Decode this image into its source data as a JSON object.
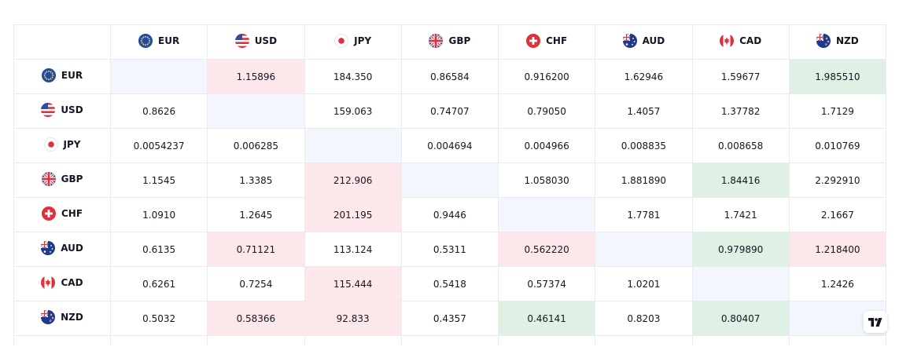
{
  "currencies": [
    "EUR",
    "USD",
    "JPY",
    "GBP",
    "CHF",
    "AUD",
    "CAD",
    "NZD"
  ],
  "flag_icons": {
    "EUR": "eu-flag-icon",
    "USD": "us-flag-icon",
    "JPY": "japan-flag-icon",
    "GBP": "uk-flag-icon",
    "CHF": "swiss-flag-icon",
    "AUD": "australia-flag-icon",
    "CAD": "canada-flag-icon",
    "NZD": "new-zealand-flag-icon"
  },
  "colors": {
    "diagonal": "#f3f6fd",
    "positive": "#dff0e4",
    "negative": "#fce8ea",
    "border": "#e9ebef",
    "text": "#131722"
  },
  "rows": [
    {
      "base": "EUR",
      "cells": [
        {
          "v": "",
          "s": "diag"
        },
        {
          "v": "1.15896",
          "s": "neg"
        },
        {
          "v": "184.350",
          "s": "neutral"
        },
        {
          "v": "0.86584",
          "s": "neutral"
        },
        {
          "v": "0.916200",
          "s": "neutral"
        },
        {
          "v": "1.62946",
          "s": "neutral"
        },
        {
          "v": "1.59677",
          "s": "neutral"
        },
        {
          "v": "1.985510",
          "s": "pos"
        }
      ]
    },
    {
      "base": "USD",
      "cells": [
        {
          "v": "0.8626",
          "s": "neutral"
        },
        {
          "v": "",
          "s": "diag"
        },
        {
          "v": "159.063",
          "s": "neutral"
        },
        {
          "v": "0.74707",
          "s": "neutral"
        },
        {
          "v": "0.79050",
          "s": "neutral"
        },
        {
          "v": "1.4057",
          "s": "neutral"
        },
        {
          "v": "1.37782",
          "s": "neutral"
        },
        {
          "v": "1.7129",
          "s": "neutral"
        }
      ]
    },
    {
      "base": "JPY",
      "cells": [
        {
          "v": "0.0054237",
          "s": "neutral"
        },
        {
          "v": "0.006285",
          "s": "neutral"
        },
        {
          "v": "",
          "s": "diag"
        },
        {
          "v": "0.004694",
          "s": "neutral"
        },
        {
          "v": "0.004966",
          "s": "neutral"
        },
        {
          "v": "0.008835",
          "s": "neutral"
        },
        {
          "v": "0.008658",
          "s": "neutral"
        },
        {
          "v": "0.010769",
          "s": "neutral"
        }
      ]
    },
    {
      "base": "GBP",
      "cells": [
        {
          "v": "1.1545",
          "s": "neutral"
        },
        {
          "v": "1.3385",
          "s": "neutral"
        },
        {
          "v": "212.906",
          "s": "neg"
        },
        {
          "v": "",
          "s": "diag"
        },
        {
          "v": "1.058030",
          "s": "neutral"
        },
        {
          "v": "1.881890",
          "s": "neutral"
        },
        {
          "v": "1.84416",
          "s": "pos"
        },
        {
          "v": "2.292910",
          "s": "neutral"
        }
      ]
    },
    {
      "base": "CHF",
      "cells": [
        {
          "v": "1.0910",
          "s": "neutral"
        },
        {
          "v": "1.2645",
          "s": "neutral"
        },
        {
          "v": "201.195",
          "s": "neg"
        },
        {
          "v": "0.9446",
          "s": "neutral"
        },
        {
          "v": "",
          "s": "diag"
        },
        {
          "v": "1.7781",
          "s": "neutral"
        },
        {
          "v": "1.7421",
          "s": "neutral"
        },
        {
          "v": "2.1667",
          "s": "neutral"
        }
      ]
    },
    {
      "base": "AUD",
      "cells": [
        {
          "v": "0.6135",
          "s": "neutral"
        },
        {
          "v": "0.71121",
          "s": "neg"
        },
        {
          "v": "113.124",
          "s": "neutral"
        },
        {
          "v": "0.5311",
          "s": "neutral"
        },
        {
          "v": "0.562220",
          "s": "neg"
        },
        {
          "v": "",
          "s": "diag"
        },
        {
          "v": "0.979890",
          "s": "pos"
        },
        {
          "v": "1.218400",
          "s": "neg"
        }
      ]
    },
    {
      "base": "CAD",
      "cells": [
        {
          "v": "0.6261",
          "s": "neutral"
        },
        {
          "v": "0.7254",
          "s": "neutral"
        },
        {
          "v": "115.444",
          "s": "neg"
        },
        {
          "v": "0.5418",
          "s": "neutral"
        },
        {
          "v": "0.57374",
          "s": "neutral"
        },
        {
          "v": "1.0201",
          "s": "neutral"
        },
        {
          "v": "",
          "s": "diag"
        },
        {
          "v": "1.2426",
          "s": "neutral"
        }
      ]
    },
    {
      "base": "NZD",
      "cells": [
        {
          "v": "0.5032",
          "s": "neutral"
        },
        {
          "v": "0.58366",
          "s": "neg"
        },
        {
          "v": "92.833",
          "s": "neg"
        },
        {
          "v": "0.4357",
          "s": "neutral"
        },
        {
          "v": "0.46141",
          "s": "pos"
        },
        {
          "v": "0.8203",
          "s": "neutral"
        },
        {
          "v": "0.80407",
          "s": "pos"
        },
        {
          "v": "",
          "s": "diag"
        }
      ]
    }
  ],
  "logo_icon": "tradingview-logo-icon"
}
